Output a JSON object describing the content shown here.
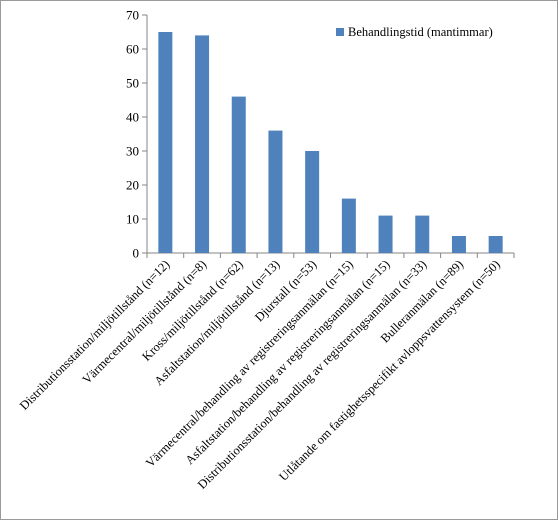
{
  "chart_data": {
    "type": "bar",
    "categories": [
      "Distributionsstation/miljötillstånd (n=12)",
      "Värmecentral/miljötillstånd (n=8)",
      "Kross/miljötillstånd (n=62)",
      "Asfaltstation/miljötillstånd (n=13)",
      "Djurstall (n=53)",
      "Värmecentral/behandling av registreringsanmälan (n=15)",
      "Asfaltstation/behandling av registreringsanmälan (n=15)",
      "Distributionsstation/behandling av registreringsanmälan (n=33)",
      "Bulleranmälan (n=89)",
      "Utlåtande om fastighetsspecifikt avloppsvattensystem (n=50)"
    ],
    "series": [
      {
        "name": "Behandlingstid (mantimmar)",
        "values": [
          65,
          64,
          46,
          36,
          30,
          16,
          11,
          11,
          5,
          5
        ]
      }
    ],
    "ylim": [
      0,
      70
    ],
    "yticks": [
      "0",
      "10",
      "20",
      "30",
      "40",
      "50",
      "60",
      "70"
    ],
    "grid": false,
    "legend_position": "top-right",
    "bar_color": "#4f81bd"
  }
}
